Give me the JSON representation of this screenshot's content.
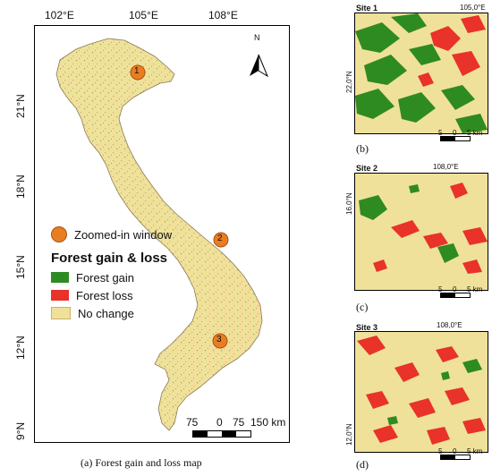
{
  "main_map": {
    "lon_ticks": [
      "102°E",
      "105°E",
      "108°E"
    ],
    "lat_ticks": [
      "21°N",
      "18°N",
      "15°N",
      "12°N",
      "9°N"
    ],
    "north_label": "N",
    "sites": [
      "1",
      "2",
      "3"
    ],
    "legend": {
      "zoom_label": "Zoomed-in window",
      "title": "Forest gain & loss",
      "items": [
        {
          "label": "Forest gain",
          "color": "#2e8b22"
        },
        {
          "label": "Forest loss",
          "color": "#e8322a"
        },
        {
          "label": "No change",
          "color": "#f0e19a"
        }
      ]
    },
    "scale_labels": [
      "75",
      "0",
      "75",
      "150 km"
    ],
    "caption": "(a) Forest gain and loss map"
  },
  "insets": [
    {
      "title": "Site 1",
      "top_tick": "105,0°E",
      "side_tick": "22,0°N",
      "scale": [
        "5",
        "0",
        "5 km"
      ],
      "caption": "(b)"
    },
    {
      "title": "Site 2",
      "top_tick": "108,0°E",
      "side_tick": "16,0°N",
      "scale": [
        "5",
        "0",
        "5 km"
      ],
      "caption": "(c)"
    },
    {
      "title": "Site 3",
      "top_tick": "108,0°E",
      "side_tick": "12,0°N",
      "scale": [
        "5",
        "0",
        "5 km"
      ],
      "caption": "(d)"
    }
  ],
  "colors": {
    "land": "#f0e19a",
    "gain": "#2e8b22",
    "loss": "#e8322a",
    "marker": "#e87d22"
  }
}
